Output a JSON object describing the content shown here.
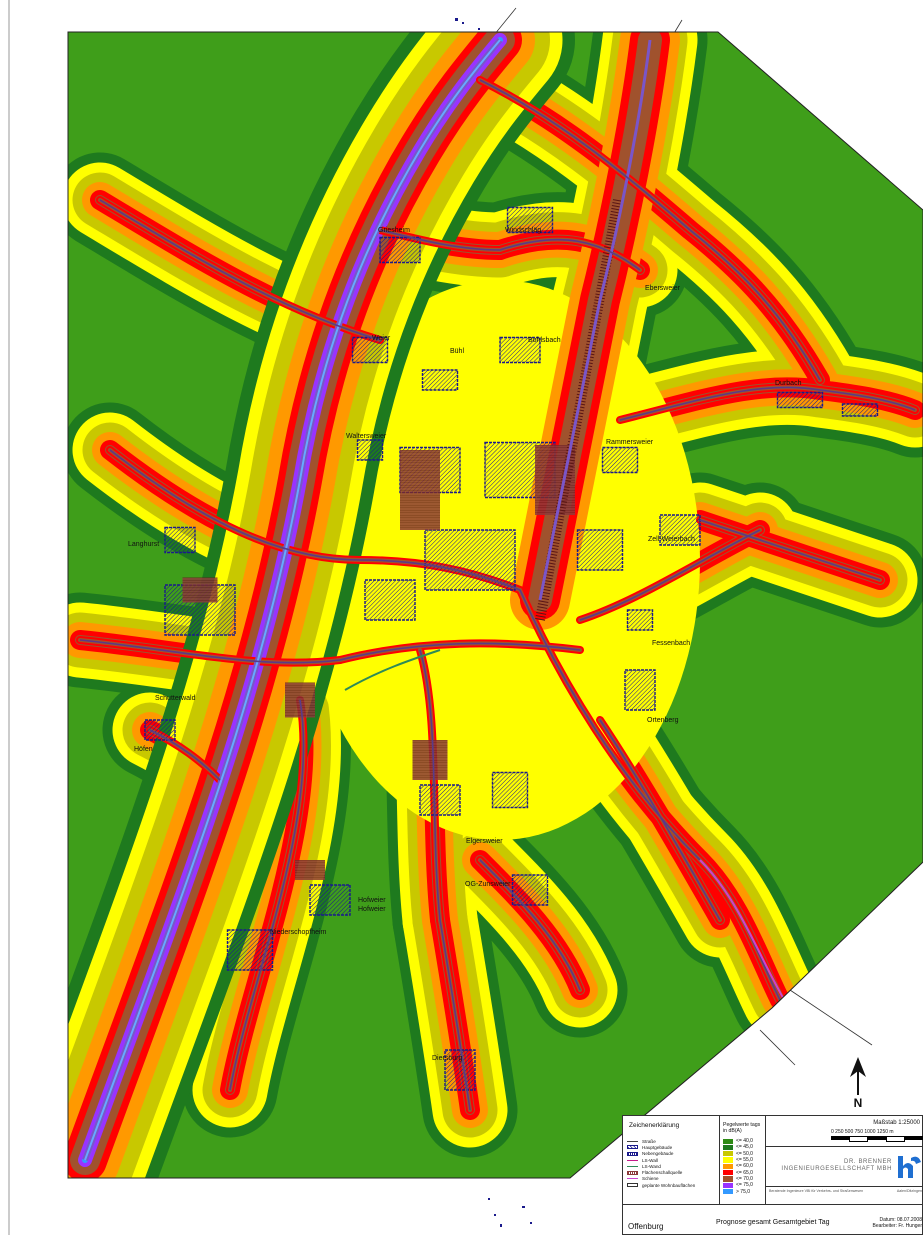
{
  "places": [
    {
      "name": "Griesheim"
    },
    {
      "name": "Windschläg"
    },
    {
      "name": "Ebersweier"
    },
    {
      "name": "Weier"
    },
    {
      "name": "Bühl"
    },
    {
      "name": "Bohlsbach"
    },
    {
      "name": "Durbach"
    },
    {
      "name": "Waltersweier"
    },
    {
      "name": "Rammersweier"
    },
    {
      "name": "Langhurst"
    },
    {
      "name": "Zell-Weierbach"
    },
    {
      "name": "Fessenbach"
    },
    {
      "name": "Schutterwald"
    },
    {
      "name": "Höfen"
    },
    {
      "name": "Ortenberg"
    },
    {
      "name": "Elgersweier"
    },
    {
      "name": "OG-Zunsweier"
    },
    {
      "name": "Hofweier"
    },
    {
      "name": "Hofweier"
    },
    {
      "name": "Niederschopfheim"
    },
    {
      "name": "Diersburg"
    }
  ],
  "legend": {
    "title": "Zeichenerklärung",
    "items": [
      {
        "label": "Straße",
        "color": "#444444",
        "kind": "line"
      },
      {
        "label": "Hauptgebäude",
        "color": "#1a1a8c",
        "kind": "hatch"
      },
      {
        "label": "Nebengebäude",
        "color": "#1a1a8c",
        "kind": "box"
      },
      {
        "label": "LS-Wall",
        "color": "#c51b8a",
        "kind": "line"
      },
      {
        "label": "LS-Wand",
        "color": "#2e8b57",
        "kind": "line"
      },
      {
        "label": "Flächenschallquelle",
        "color": "#8b3a3a",
        "kind": "box"
      },
      {
        "label": "Schiene",
        "color": "#cc44cc",
        "kind": "line"
      },
      {
        "label": "geplante Wohnbauflächen",
        "color": "#333333",
        "kind": "outline"
      }
    ]
  },
  "levels": {
    "title": "Pegelwerte tags in dB(A)",
    "rows": [
      {
        "label": "<= 40,0",
        "color": "#2e8b15"
      },
      {
        "label": "<= 45,0",
        "color": "#1f7a1f"
      },
      {
        "label": "<= 50,0",
        "color": "#c8c800"
      },
      {
        "label": "<= 55,0",
        "color": "#ffff00"
      },
      {
        "label": "<= 60,0",
        "color": "#ff9900"
      },
      {
        "label": "<= 65,0",
        "color": "#ff0000"
      },
      {
        "label": "<= 70,0",
        "color": "#a0522d"
      },
      {
        "label": "<= 75,0",
        "color": "#9933ff"
      },
      {
        "label": ">  75,0",
        "color": "#3399ff"
      }
    ]
  },
  "scale": {
    "title": "Maßstab 1:25000",
    "ticks": "0    250   500   750   1000  1250  m"
  },
  "company": {
    "line1": "DR. BRENNER",
    "line2": "INGENIEURGESELLSCHAFT MBH",
    "sub": "Beratende Ingenieure VBI für Verkehrs- und Straßenwesen",
    "sub2": "Aalen/Ditzingen"
  },
  "footer": {
    "city": "Offenburg",
    "title": "Prognose gesamt Gesamtgebiet Tag",
    "date": "Datum: 08.07.2008",
    "author": "Bearbeiter: Fr. Hunger"
  },
  "north_label": "N",
  "colors": {
    "green_dark": "#3f9e1a",
    "green_deep": "#1e7a1e",
    "olive": "#c8c800",
    "yellow": "#ffff00",
    "orange": "#ff9900",
    "red": "#ff0000",
    "brown": "#a0522d",
    "purple": "#9933ff",
    "blue": "#3399ff"
  }
}
